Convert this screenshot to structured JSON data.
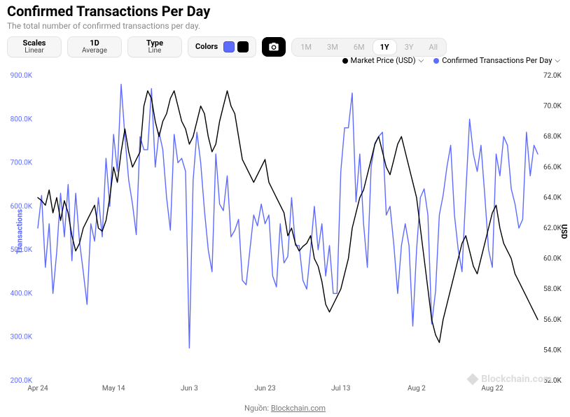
{
  "title": "Confirmed Transactions Per Day",
  "subtitle": "The total number of confirmed transactions per day.",
  "controls": {
    "scales": {
      "label": "Scales",
      "value": "Linear"
    },
    "granularity": {
      "label": "1D",
      "value": "Average"
    },
    "type": {
      "label": "Type",
      "value": "Line"
    },
    "colors_label": "Colors",
    "ranges": [
      "1M",
      "3M",
      "6M",
      "1Y",
      "3Y",
      "All"
    ],
    "active_range": "1Y"
  },
  "legend": {
    "market": {
      "label": "Market Price (USD)",
      "color": "#000000"
    },
    "tx": {
      "label": "Confirmed Transactions Per Day",
      "color": "#5e6bff"
    }
  },
  "chart": {
    "type": "line",
    "background_color": "#ffffff",
    "grid": false,
    "left_axis": {
      "title": "Transactions",
      "color": "#5e6bff",
      "min": 200000,
      "max": 900000,
      "step": 100000,
      "tick_labels": [
        "200.0K",
        "300.0K",
        "400.0K",
        "500.0K",
        "600.0K",
        "700.0K",
        "800.0K",
        "900.0K"
      ]
    },
    "right_axis": {
      "title": "USD",
      "color": "#000000",
      "min": 52000,
      "max": 72000,
      "step": 2000,
      "tick_labels": [
        "52.0K",
        "54.0K",
        "56.0K",
        "58.0K",
        "60.0K",
        "62.0K",
        "64.0K",
        "66.0K",
        "68.0K",
        "70.0K",
        "72.0K"
      ]
    },
    "x_axis": {
      "labels": [
        "Apr 24",
        "May 14",
        "Jun 3",
        "Jun 23",
        "Jul 13",
        "Aug 2",
        "Aug 22"
      ],
      "positions": [
        0,
        20,
        40,
        60,
        80,
        100,
        120
      ],
      "n_points": 133
    },
    "series": {
      "transactions": {
        "color": "#5e6bff",
        "line_width": 1.4,
        "values": [
          550,
          625,
          460,
          560,
          400,
          495,
          630,
          530,
          650,
          475,
          630,
          520,
          450,
          375,
          560,
          520,
          620,
          530,
          710,
          600,
          765,
          680,
          880,
          760,
          660,
          605,
          535,
          760,
          730,
          730,
          870,
          690,
          770,
          730,
          620,
          545,
          765,
          700,
          710,
          680,
          275,
          660,
          770,
          700,
          590,
          500,
          450,
          720,
          605,
          590,
          670,
          530,
          545,
          570,
          430,
          420,
          500,
          580,
          555,
          605,
          560,
          580,
          440,
          415,
          560,
          470,
          485,
          620,
          510,
          510,
          430,
          410,
          500,
          600,
          500,
          560,
          440,
          510,
          400,
          400,
          680,
          780,
          780,
          860,
          610,
          720,
          560,
          460,
          690,
          745,
          760,
          770,
          580,
          600,
          510,
          400,
          510,
          560,
          510,
          325,
          500,
          620,
          640,
          580,
          330,
          405,
          580,
          625,
          690,
          740,
          580,
          500,
          450,
          630,
          800,
          720,
          680,
          740,
          625,
          500,
          460,
          720,
          670,
          760,
          740,
          640,
          605,
          550,
          570,
          770,
          670,
          740,
          720
        ],
        "value_scale": 1000
      },
      "market_price": {
        "color": "#000000",
        "line_width": 1.4,
        "values": [
          64.0,
          63.8,
          63.5,
          64.5,
          63.0,
          64.0,
          62.5,
          63.8,
          63.0,
          61.5,
          60.5,
          61.0,
          62.0,
          62.5,
          63.0,
          63.5,
          62.0,
          61.8,
          62.5,
          64.0,
          66.0,
          65.0,
          67.0,
          68.5,
          67.0,
          66.0,
          66.5,
          67.0,
          70.0,
          71.0,
          70.5,
          69.0,
          68.0,
          69.0,
          69.5,
          70.5,
          71.0,
          70.0,
          69.0,
          68.5,
          67.5,
          68.0,
          69.0,
          70.0,
          69.5,
          68.0,
          67.0,
          67.5,
          69.0,
          70.0,
          71.0,
          70.0,
          69.5,
          68.0,
          66.5,
          66.0,
          65.5,
          65.0,
          65.5,
          66.0,
          66.5,
          65.0,
          64.5,
          64.0,
          63.5,
          63.0,
          61.5,
          62.0,
          61.0,
          60.5,
          60.8,
          61.0,
          61.5,
          60.0,
          59.5,
          58.5,
          57.0,
          56.5,
          57.0,
          57.5,
          58.0,
          59.0,
          60.0,
          62.0,
          63.0,
          64.0,
          64.5,
          65.5,
          66.5,
          67.5,
          68.0,
          67.0,
          66.0,
          65.5,
          66.5,
          67.5,
          68.0,
          67.0,
          66.0,
          65.0,
          64.0,
          62.0,
          60.0,
          58.0,
          56.0,
          55.0,
          54.5,
          56.0,
          57.0,
          58.0,
          59.0,
          60.0,
          61.0,
          61.5,
          60.5,
          59.5,
          59.0,
          60.0,
          61.0,
          62.0,
          63.0,
          63.5,
          62.0,
          61.0,
          60.5,
          60.0,
          59.0,
          58.5,
          58.0,
          57.5,
          57.0,
          56.5,
          56.0
        ],
        "value_scale": 1000
      }
    }
  },
  "watermark": "Blockchain.com",
  "source_prefix": "Nguồn: ",
  "source_link": "Blockchain.com"
}
